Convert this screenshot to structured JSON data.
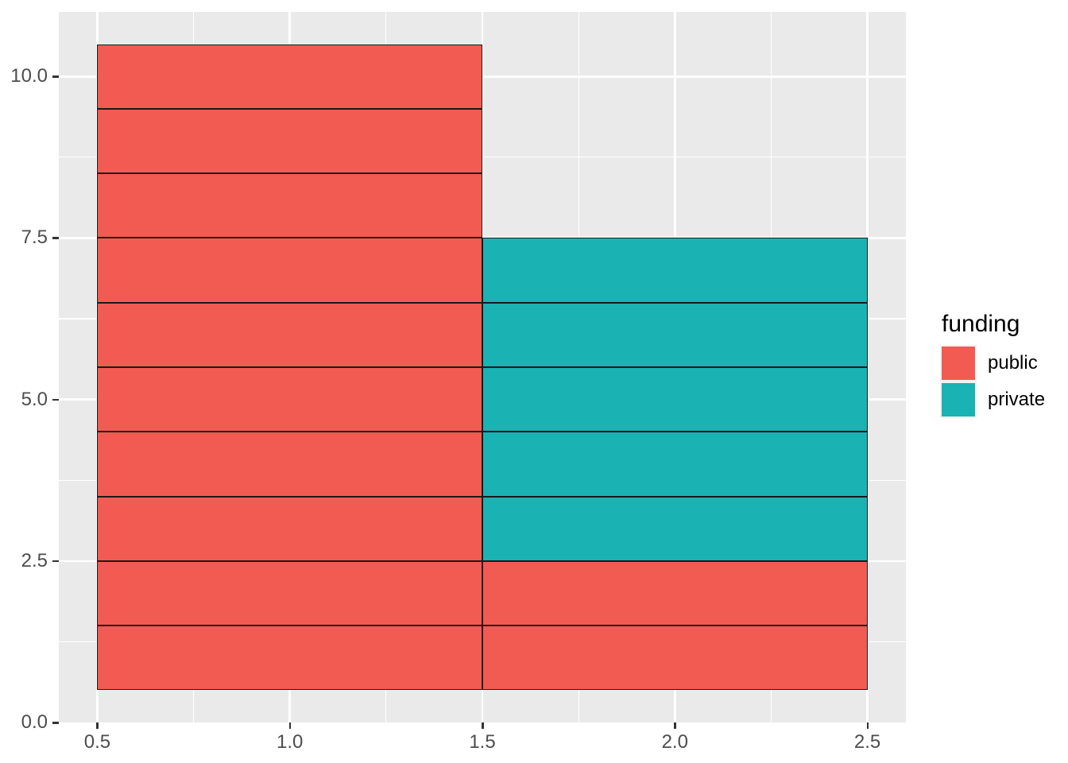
{
  "chart_data": {
    "type": "bar",
    "subtype": "stacked-unit-histogram",
    "title": "",
    "xlabel": "",
    "ylabel": "",
    "grid": "on",
    "x_axis": {
      "range": [
        0.4,
        2.6
      ],
      "ticks": [
        0.5,
        1.0,
        1.5,
        2.0,
        2.5
      ],
      "tick_labels": [
        "0.5",
        "1.0",
        "1.5",
        "2.0",
        "2.5"
      ],
      "minor_ticks": [
        0.75,
        1.25,
        1.75,
        2.25
      ]
    },
    "y_axis": {
      "range": [
        0,
        11.0
      ],
      "ticks": [
        0.0,
        2.5,
        5.0,
        7.5,
        10.0
      ],
      "tick_labels": [
        "0.0",
        "2.5",
        "5.0",
        "7.5",
        "10.0"
      ],
      "minor_ticks": [
        1.25,
        3.75,
        6.25,
        8.75
      ]
    },
    "unit_cell_height": 1,
    "bars": [
      {
        "x0": 0.5,
        "x1": 1.5,
        "y_base": 0.5,
        "stacks": [
          {
            "category": "public",
            "count": 10
          }
        ]
      },
      {
        "x0": 1.5,
        "x1": 2.5,
        "y_base": 0.5,
        "stacks": [
          {
            "category": "public",
            "count": 2
          },
          {
            "category": "private",
            "count": 5
          }
        ]
      }
    ],
    "legend": {
      "title": "funding",
      "position": "right",
      "items": [
        {
          "label": "public",
          "color": "#F25B52"
        },
        {
          "label": "private",
          "color": "#1BB2B3"
        }
      ]
    },
    "colors": {
      "public": "#F25B52",
      "private": "#1BB2B3",
      "panel_background": "#EAEAEA",
      "grid": "#FFFFFF",
      "cell_border": "#1A1A1A",
      "axis_text": "#4D4D4D",
      "tick_mark": "#333333"
    }
  }
}
